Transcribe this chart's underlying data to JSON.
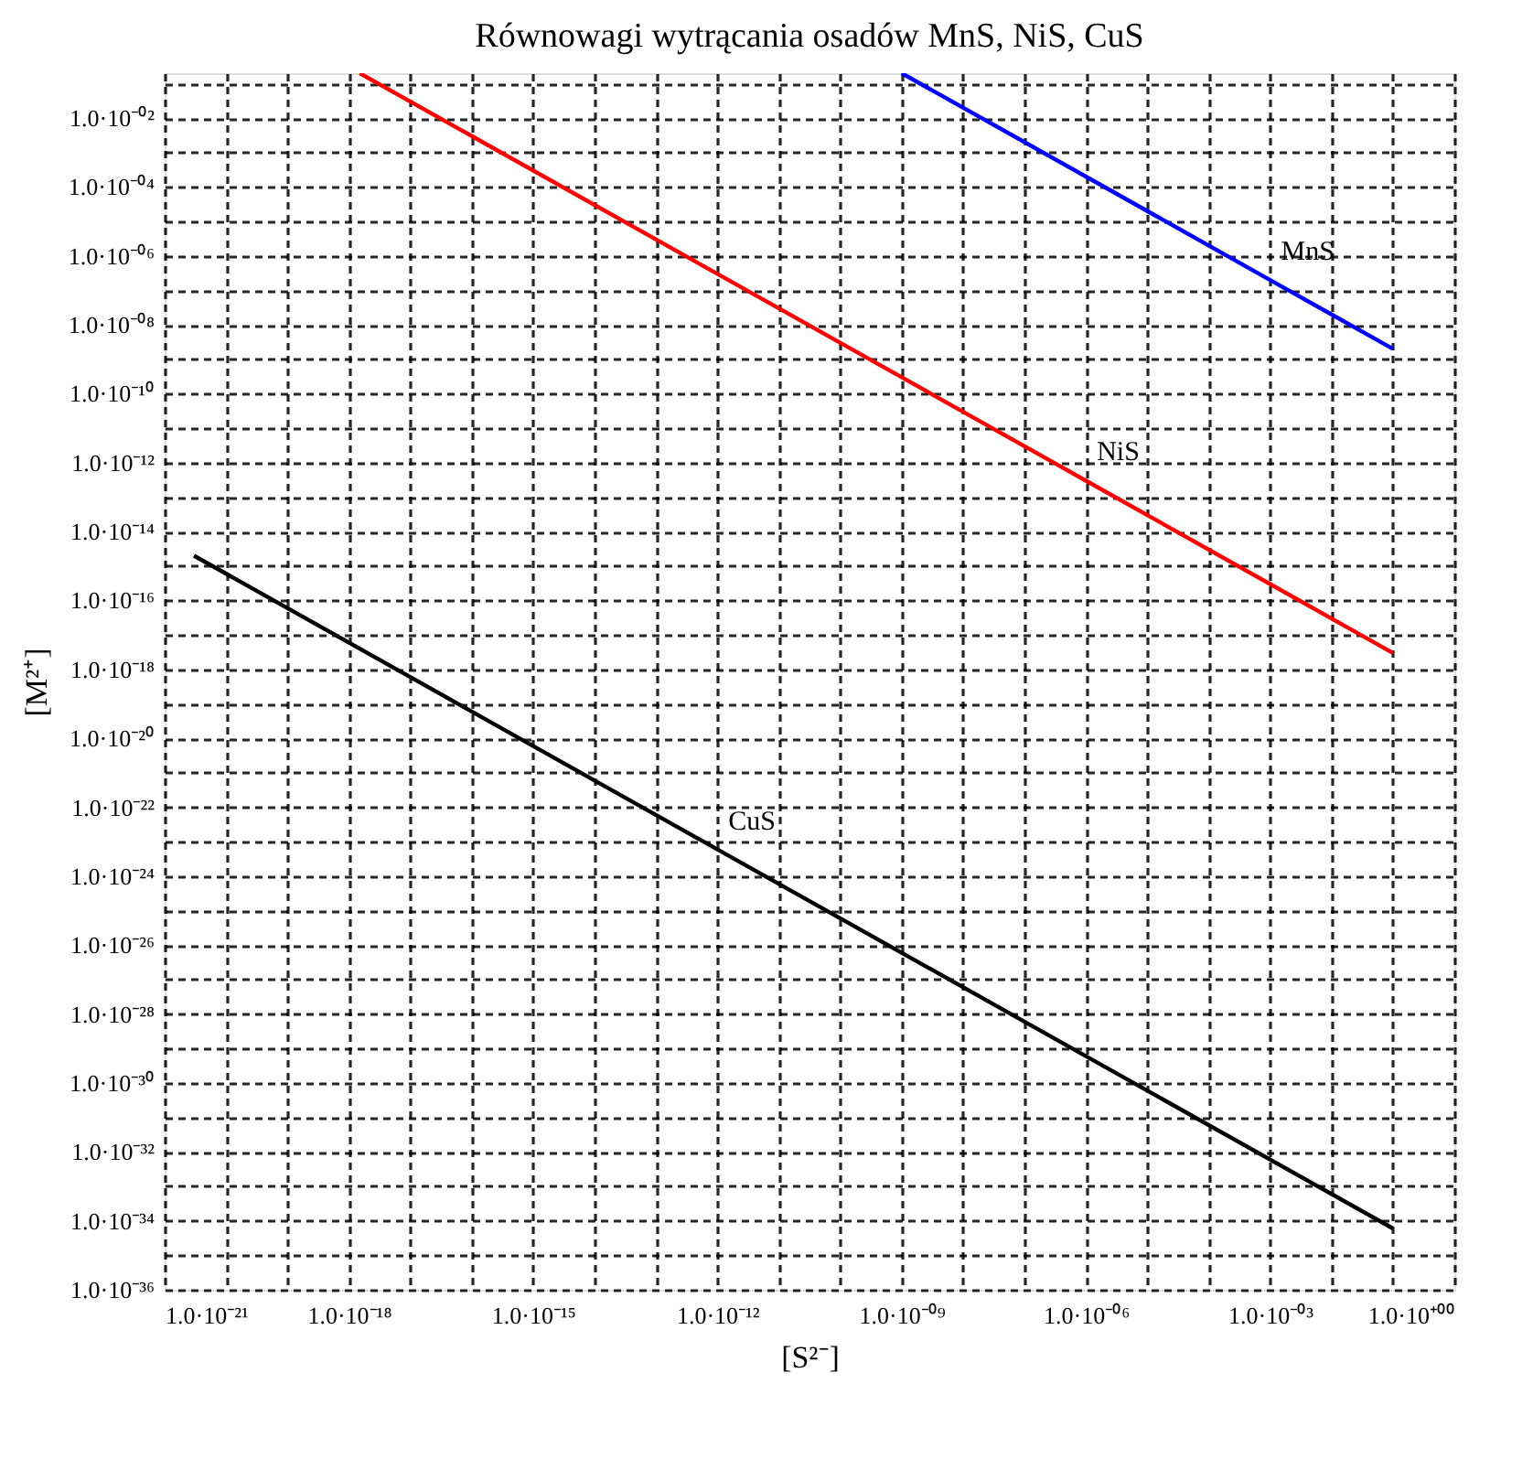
{
  "chart_data": {
    "type": "line",
    "title": "Równowagi wytrącania osadów MnS, NiS, CuS",
    "xlabel": "[S²⁻]",
    "ylabel": "[M²⁺]",
    "log": "xy",
    "grid": true,
    "marker": "none",
    "line_style": "solid",
    "xlim": [
      1e-21,
      1
    ],
    "ylim": [
      1e-36,
      0.2
    ],
    "xticks": [
      {
        "value": 1e-21,
        "label": "1.0·10⁻²¹"
      },
      {
        "value": 1e-20,
        "label": null
      },
      {
        "value": 1e-19,
        "label": null
      },
      {
        "value": 1e-18,
        "label": "1.0·10⁻¹⁸"
      },
      {
        "value": 1e-17,
        "label": null
      },
      {
        "value": 1e-16,
        "label": null
      },
      {
        "value": 1e-15,
        "label": "1.0·10⁻¹⁵"
      },
      {
        "value": 1e-14,
        "label": null
      },
      {
        "value": 1e-13,
        "label": null
      },
      {
        "value": 1e-12,
        "label": "1.0·10⁻¹²"
      },
      {
        "value": 1e-11,
        "label": null
      },
      {
        "value": 1e-10,
        "label": null
      },
      {
        "value": 1e-09,
        "label": "1.0·10⁻⁰⁹"
      },
      {
        "value": 1e-08,
        "label": null
      },
      {
        "value": 1e-07,
        "label": null
      },
      {
        "value": 1e-06,
        "label": "1.0·10⁻⁰⁶"
      },
      {
        "value": 1e-05,
        "label": null
      },
      {
        "value": 0.0001,
        "label": null
      },
      {
        "value": 0.001,
        "label": "1.0·10⁻⁰³"
      },
      {
        "value": 0.01,
        "label": null
      },
      {
        "value": 0.1,
        "label": null
      },
      {
        "value": 1,
        "label": "1.0·10⁺⁰⁰"
      }
    ],
    "yticks": [
      {
        "value": 1e-36,
        "label": "1.0·10⁻³⁶"
      },
      {
        "value": 1e-35,
        "label": null
      },
      {
        "value": 1e-34,
        "label": "1.0·10⁻³⁴"
      },
      {
        "value": 1e-33,
        "label": null
      },
      {
        "value": 1e-32,
        "label": "1.0·10⁻³²"
      },
      {
        "value": 1e-31,
        "label": null
      },
      {
        "value": 1e-30,
        "label": "1.0·10⁻³⁰"
      },
      {
        "value": 1e-29,
        "label": null
      },
      {
        "value": 1e-28,
        "label": "1.0·10⁻²⁸"
      },
      {
        "value": 1e-27,
        "label": null
      },
      {
        "value": 1e-26,
        "label": "1.0·10⁻²⁶"
      },
      {
        "value": 1e-25,
        "label": null
      },
      {
        "value": 1e-24,
        "label": "1.0·10⁻²⁴"
      },
      {
        "value": 1e-23,
        "label": null
      },
      {
        "value": 1e-22,
        "label": "1.0·10⁻²²"
      },
      {
        "value": 1e-21,
        "label": null
      },
      {
        "value": 1e-20,
        "label": "1.0·10⁻²⁰"
      },
      {
        "value": 1e-19,
        "label": null
      },
      {
        "value": 1e-18,
        "label": "1.0·10⁻¹⁸"
      },
      {
        "value": 1e-17,
        "label": null
      },
      {
        "value": 1e-16,
        "label": "1.0·10⁻¹⁶"
      },
      {
        "value": 1e-15,
        "label": null
      },
      {
        "value": 1e-14,
        "label": "1.0·10⁻¹⁴"
      },
      {
        "value": 1e-13,
        "label": null
      },
      {
        "value": 1e-12,
        "label": "1.0·10⁻¹²"
      },
      {
        "value": 1e-11,
        "label": null
      },
      {
        "value": 1e-10,
        "label": "1.0·10⁻¹⁰"
      },
      {
        "value": 1e-09,
        "label": null
      },
      {
        "value": 1e-08,
        "label": "1.0·10⁻⁰⁸"
      },
      {
        "value": 1e-07,
        "label": null
      },
      {
        "value": 1e-06,
        "label": "1.0·10⁻⁰⁶"
      },
      {
        "value": 1e-05,
        "label": null
      },
      {
        "value": 0.0001,
        "label": "1.0·10⁻⁰⁴"
      },
      {
        "value": 0.001,
        "label": null
      },
      {
        "value": 0.01,
        "label": "1.0·10⁻⁰²"
      },
      {
        "value": 0.1,
        "label": null
      }
    ],
    "series": [
      {
        "name": "MnS",
        "color": "#0000ff",
        "x": [
          1e-09,
          1e-06,
          0.001,
          0.01,
          0.1
        ],
        "values": [
          0.2,
          0.0002,
          2e-07,
          2e-08,
          2e-09
        ]
      },
      {
        "name": "NiS",
        "color": "#ff0000",
        "x": [
          1.5e-18,
          1e-12,
          1e-06,
          0.001,
          0.1
        ],
        "values": [
          0.2,
          3e-07,
          3e-13,
          3e-16,
          3e-18
        ]
      },
      {
        "name": "CuS",
        "color": "#000000",
        "x": [
          3e-21,
          1e-16,
          1e-12,
          1e-06,
          0.1
        ],
        "values": [
          2e-15,
          6e-20,
          6e-24,
          6e-30,
          6e-35
        ]
      }
    ]
  }
}
